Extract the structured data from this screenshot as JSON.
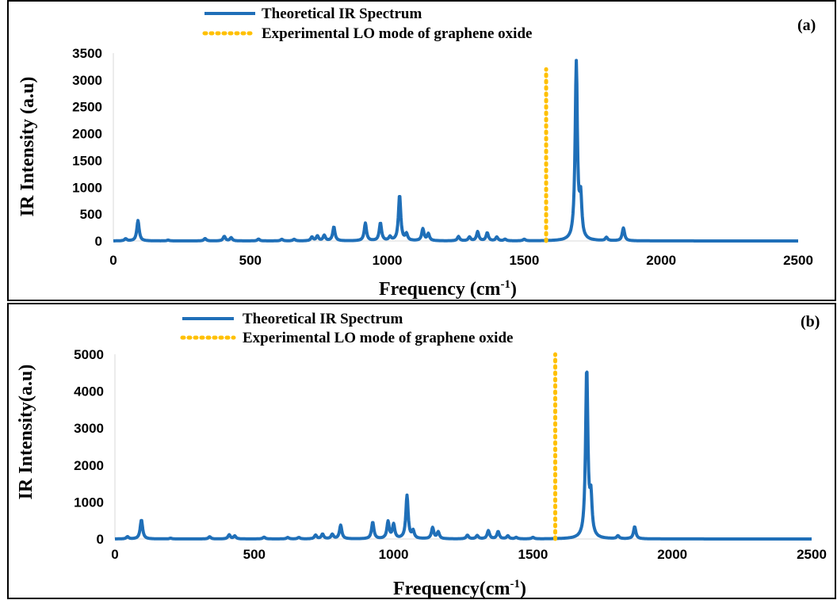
{
  "chart_data": [
    {
      "type": "line",
      "panel_label": "(a)",
      "xlabel": "Frequency (cm",
      "xlabel_sup": "-1",
      "xlabel_end": ")",
      "ylabel": "IR Intensity (a.u)",
      "xlim": [
        0,
        2500
      ],
      "ylim": [
        0,
        3500
      ],
      "xticks": [
        "0",
        "500",
        "1000",
        "1500",
        "2000",
        "2500"
      ],
      "yticks": [
        "0",
        "500",
        "1000",
        "1500",
        "2000",
        "2500",
        "3000",
        "3500"
      ],
      "legend_position": "top-center",
      "series": [
        {
          "name": "Theoretical IR Spectrum",
          "style": "solid",
          "color": "#1f6fb8",
          "peaks": [
            [
              45,
              40
            ],
            [
              90,
              380
            ],
            [
              200,
              15
            ],
            [
              335,
              45
            ],
            [
              405,
              85
            ],
            [
              430,
              60
            ],
            [
              530,
              35
            ],
            [
              615,
              30
            ],
            [
              660,
              30
            ],
            [
              725,
              70
            ],
            [
              745,
              90
            ],
            [
              770,
              100
            ],
            [
              805,
              260
            ],
            [
              920,
              330
            ],
            [
              975,
              330
            ],
            [
              1010,
              70
            ],
            [
              1045,
              850
            ],
            [
              1070,
              120
            ],
            [
              1130,
              220
            ],
            [
              1150,
              130
            ],
            [
              1260,
              80
            ],
            [
              1300,
              70
            ],
            [
              1330,
              170
            ],
            [
              1365,
              150
            ],
            [
              1400,
              70
            ],
            [
              1430,
              30
            ],
            [
              1500,
              30
            ],
            [
              1690,
              3300
            ],
            [
              1706,
              720
            ],
            [
              1800,
              60
            ],
            [
              1862,
              240
            ]
          ]
        },
        {
          "name": "Experimental LO mode of  graphene oxide",
          "style": "dotted",
          "color": "#ffc000",
          "x": [
            1580,
            1580
          ],
          "y": [
            0,
            3200
          ]
        }
      ]
    },
    {
      "type": "line",
      "panel_label": "(b)",
      "xlabel": "Frequency(cm",
      "xlabel_sup": "-1",
      "xlabel_end": ")",
      "ylabel": "IR Intensity(a.u)",
      "xlim": [
        0,
        2500
      ],
      "ylim": [
        0,
        5000
      ],
      "xticks": [
        "0",
        "500",
        "1000",
        "1500",
        "2000",
        "2500"
      ],
      "yticks": [
        "0",
        "1000",
        "2000",
        "3000",
        "4000",
        "5000"
      ],
      "legend_position": "top-center",
      "series": [
        {
          "name": "Theoretical IR Spectrum",
          "style": "solid",
          "color": "#1f6fb8",
          "peaks": [
            [
              45,
              60
            ],
            [
              95,
              520
            ],
            [
              200,
              20
            ],
            [
              340,
              60
            ],
            [
              410,
              110
            ],
            [
              430,
              80
            ],
            [
              535,
              50
            ],
            [
              620,
              40
            ],
            [
              660,
              40
            ],
            [
              720,
              100
            ],
            [
              745,
              130
            ],
            [
              780,
              120
            ],
            [
              810,
              370
            ],
            [
              925,
              450
            ],
            [
              980,
              460
            ],
            [
              1000,
              380
            ],
            [
              1048,
              1170
            ],
            [
              1070,
              200
            ],
            [
              1140,
              300
            ],
            [
              1160,
              180
            ],
            [
              1265,
              100
            ],
            [
              1300,
              90
            ],
            [
              1340,
              220
            ],
            [
              1375,
              200
            ],
            [
              1410,
              80
            ],
            [
              1440,
              40
            ],
            [
              1500,
              40
            ],
            [
              1693,
              4580
            ],
            [
              1708,
              1000
            ],
            [
              1805,
              80
            ],
            [
              1865,
              330
            ]
          ]
        },
        {
          "name": "Experimental LO mode of graphene oxide",
          "style": "dotted",
          "color": "#ffc000",
          "x": [
            1580,
            1580
          ],
          "y": [
            0,
            5000
          ]
        }
      ]
    }
  ]
}
